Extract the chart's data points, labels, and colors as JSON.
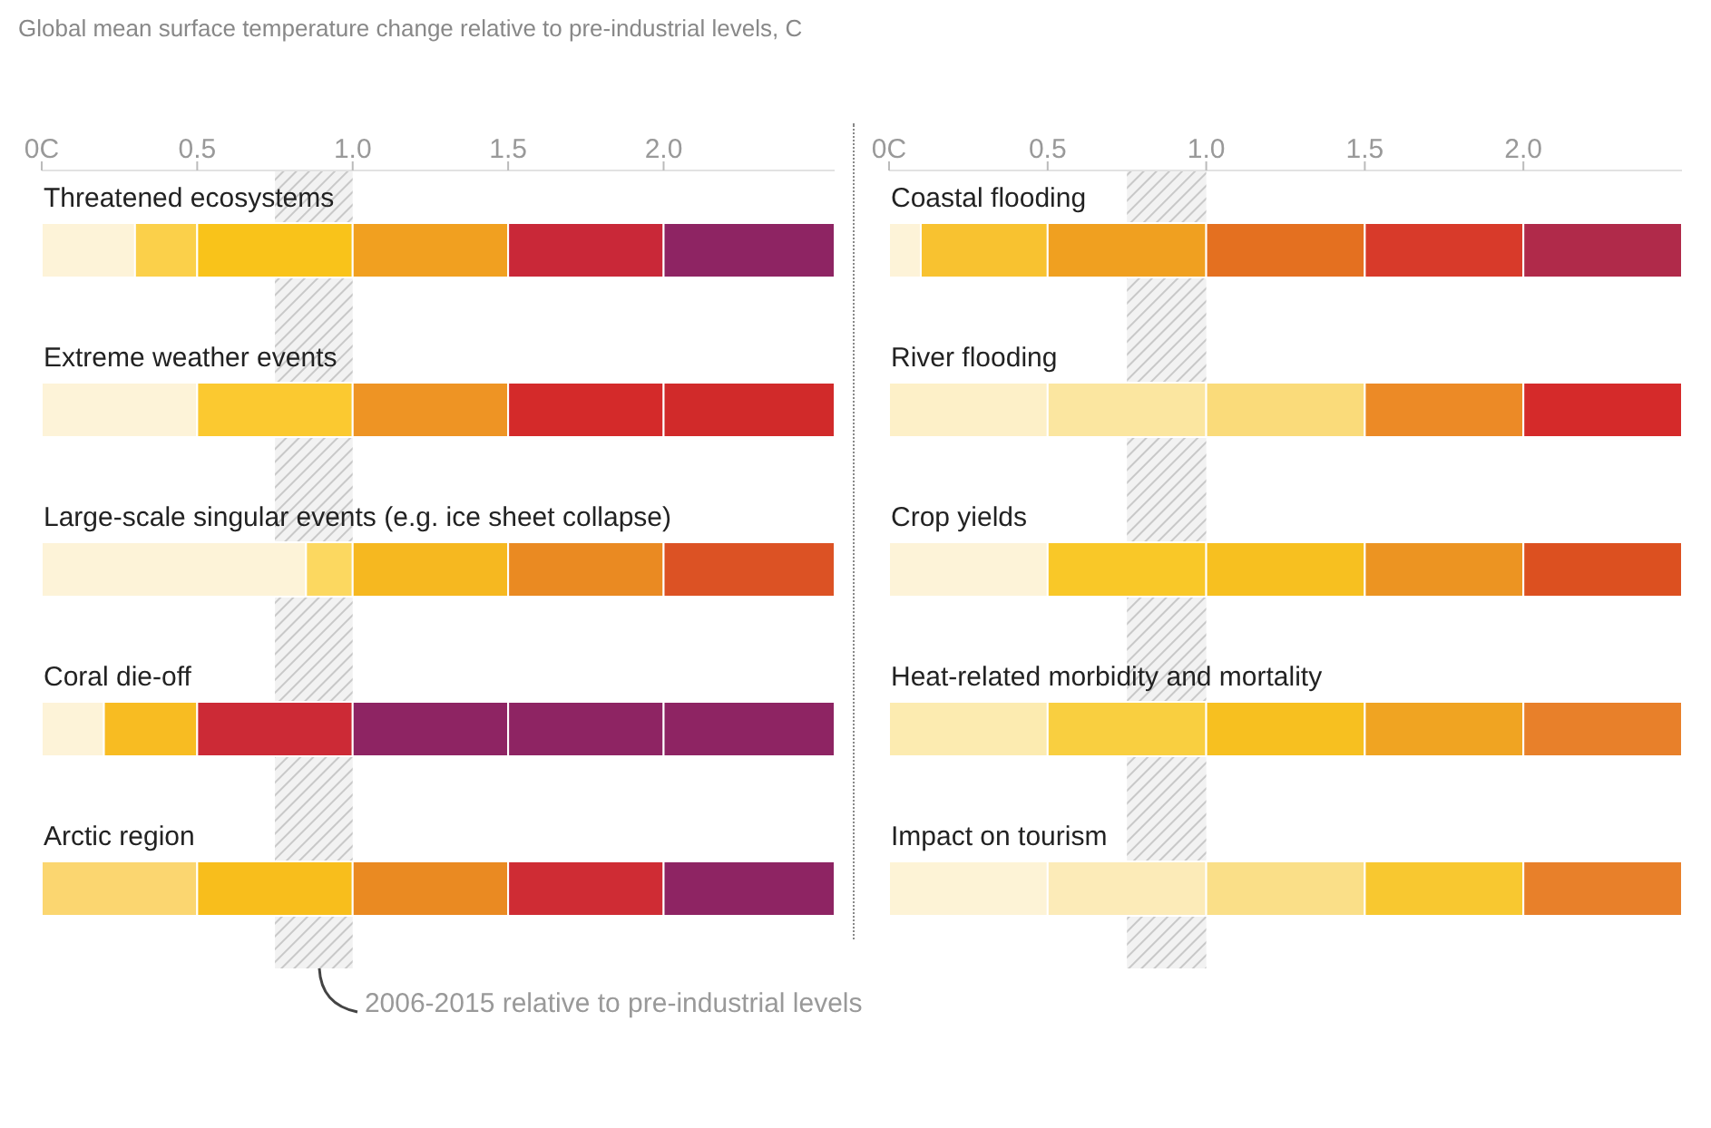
{
  "chart_data": [
    {
      "type": "bar",
      "orientation": "horizontal",
      "stacked": true,
      "title": "Global mean surface temperature change relative to pre-industrial levels, C",
      "categories": [
        "Threatened ecosystems",
        "Extreme weather events",
        "Large-scale singular events (e.g. ice sheet collapse)",
        "Coral die-off",
        "Arctic region"
      ],
      "series": [
        {
          "values": [
            0.3,
            0.5,
            0.85,
            0.2,
            null
          ],
          "color": "#fdf3d8"
        },
        {
          "values": [
            0.2,
            null,
            null,
            0.3,
            0.5
          ],
          "colors": [
            "#fbd04a",
            "#fbd04a",
            "#fbd04a",
            "#f8bc22",
            "#fbd670"
          ]
        },
        {
          "values": [
            0.5,
            0.5,
            0.15,
            0.5,
            0.5
          ],
          "colors": [
            "#f9c31a",
            "#fbc930",
            "#fcd860",
            "#cc2a36",
            "#f8be1c"
          ]
        },
        {
          "values": [
            0.5,
            0.5,
            0.5,
            0.5,
            0.5
          ],
          "colors": [
            "#f1a020",
            "#ee9424",
            "#f6b820",
            "#8e2463",
            "#ea8a22"
          ]
        },
        {
          "values": [
            0.5,
            0.5,
            0.5,
            0.5,
            0.5
          ],
          "colors": [
            "#c92838",
            "#d42a2a",
            "#ea8a22",
            "#8e2463",
            "#cf2c34"
          ]
        },
        {
          "values": [
            0.55,
            0.55,
            0.55,
            0.55,
            0.55
          ],
          "colors": [
            "#8e2463",
            "#d12a2a",
            "#dc5224",
            "#8e2463",
            "#8e2463"
          ]
        }
      ],
      "xlim": [
        0,
        2.55
      ],
      "xticks": [
        {
          "value": 0,
          "label": "0C"
        },
        {
          "value": 0.5,
          "label": "0.5"
        },
        {
          "value": 1,
          "label": "1.0"
        },
        {
          "value": 1.5,
          "label": "1.5"
        },
        {
          "value": 2,
          "label": "2.0"
        }
      ],
      "bands": [
        {
          "axis": "x",
          "from": 0.75,
          "to": 1.0,
          "color": "#c8c8c8"
        }
      ],
      "annotations": [
        "2006-2015 relative to pre-industrial levels"
      ]
    },
    {
      "type": "bar",
      "orientation": "horizontal",
      "stacked": true,
      "categories": [
        "Coastal flooding",
        "River flooding",
        "Crop yields",
        "Heat-related morbidity and mortality",
        "Impact on tourism"
      ],
      "series": [
        {
          "values": [
            0.1,
            null,
            0.5,
            null,
            null
          ],
          "color": "#fdf3d8"
        },
        {
          "values": [
            0.4,
            0.5,
            null,
            0.5,
            0.5
          ],
          "colors": [
            "#f8c230",
            "#fdf0c8",
            "#f9c828",
            "#fcebb0",
            "#fdf3d6"
          ]
        },
        {
          "values": [
            0.5,
            0.5,
            0.5,
            0.5,
            0.5
          ],
          "colors": [
            "#f0a020",
            "#fbe6a0",
            "#f9c828",
            "#f9cf40",
            "#fcebb8"
          ]
        },
        {
          "values": [
            0.5,
            0.5,
            0.5,
            0.5,
            0.5
          ],
          "colors": [
            "#e47020",
            "#fadb7a",
            "#f7c020",
            "#f7c020",
            "#fadf88"
          ]
        },
        {
          "values": [
            0.5,
            0.5,
            0.5,
            0.5,
            0.5
          ],
          "colors": [
            "#d83a2a",
            "#ec8a26",
            "#ec9422",
            "#f0a422",
            "#f8c830"
          ]
        },
        {
          "values": [
            0.5,
            0.5,
            0.5,
            0.5,
            0.5
          ],
          "colors": [
            "#b02a4a",
            "#d52a2a",
            "#dc5020",
            "#e8802a",
            "#e8802a"
          ]
        }
      ],
      "xlim": [
        0,
        2.5
      ],
      "xticks": [
        {
          "value": 0,
          "label": "0C"
        },
        {
          "value": 0.5,
          "label": "0.5"
        },
        {
          "value": 1,
          "label": "1.0"
        },
        {
          "value": 1.5,
          "label": "1.5"
        },
        {
          "value": 2,
          "label": "2.0"
        }
      ],
      "bands": [
        {
          "axis": "x",
          "from": 0.75,
          "to": 1.0,
          "color": "#c8c8c8"
        }
      ]
    }
  ]
}
